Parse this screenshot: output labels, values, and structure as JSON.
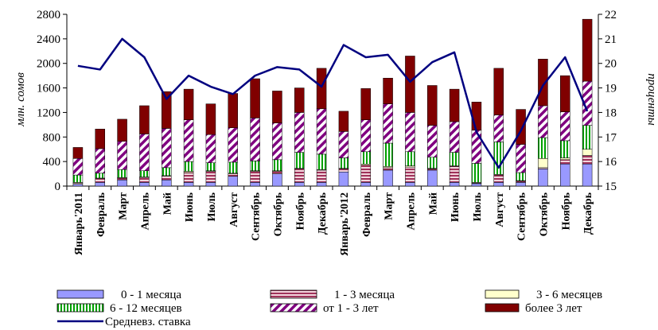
{
  "chart_data": {
    "type": "bar",
    "stacked": true,
    "categories": [
      "Январь'2011",
      "Февраль",
      "Март",
      "Апрель",
      "Май",
      "Июнь",
      "Июль",
      "Август",
      "Сентябрь",
      "Октябрь",
      "Ноябрь",
      "Декабрь",
      "Январь'2012",
      "Февраль",
      "Март",
      "Апрель",
      "Май",
      "Июнь",
      "Июль",
      "Август",
      "Сентябрь",
      "Октябрь",
      "Ноябрь",
      "Декабрь"
    ],
    "ylabel": "млн. сомов",
    "ylabel2": "проценты",
    "ylim": [
      0,
      2800
    ],
    "y2lim": [
      15,
      22
    ],
    "yticks": [
      0,
      400,
      800,
      1200,
      1600,
      2000,
      2400,
      2800
    ],
    "y2ticks": [
      15,
      16,
      17,
      18,
      19,
      20,
      21,
      22
    ],
    "legend_position": "bottom",
    "series": [
      {
        "name": "0 - 1 месяца",
        "color": "#9999ff",
        "pattern": "solid",
        "values": [
          30,
          60,
          100,
          60,
          100,
          60,
          60,
          160,
          60,
          200,
          60,
          60,
          230,
          60,
          260,
          60,
          260,
          60,
          40,
          60,
          60,
          280,
          360,
          360
        ]
      },
      {
        "name": "1 - 3 месяца",
        "color": "#a0325a",
        "pattern": "hstripe",
        "values": [
          20,
          60,
          30,
          80,
          60,
          160,
          180,
          40,
          180,
          40,
          220,
          200,
          50,
          280,
          40,
          250,
          20,
          260,
          10,
          120,
          20,
          20,
          70,
          140
        ]
      },
      {
        "name": "3 - 6 месяцев",
        "color": "#ffffcc",
        "pattern": "solid",
        "values": [
          10,
          10,
          10,
          10,
          10,
          20,
          10,
          10,
          10,
          10,
          10,
          10,
          10,
          20,
          20,
          20,
          10,
          10,
          10,
          10,
          10,
          150,
          30,
          100
        ]
      },
      {
        "name": "6 - 12 месяцев",
        "color": "#00a000",
        "pattern": "vstripe",
        "values": [
          120,
          80,
          130,
          100,
          130,
          160,
          130,
          180,
          160,
          180,
          260,
          250,
          170,
          200,
          380,
          230,
          180,
          220,
          310,
          530,
          130,
          340,
          280,
          390
        ]
      },
      {
        "name": "от 1 - 3 лет",
        "color": "#800080",
        "pattern": "diag",
        "values": [
          270,
          400,
          460,
          600,
          640,
          680,
          460,
          560,
          700,
          600,
          650,
          740,
          430,
          520,
          640,
          640,
          520,
          500,
          540,
          440,
          460,
          520,
          470,
          720
        ]
      },
      {
        "name": "более 3 лет",
        "color": "#800000",
        "pattern": "solid",
        "values": [
          180,
          320,
          360,
          460,
          600,
          500,
          500,
          560,
          640,
          520,
          400,
          660,
          330,
          510,
          420,
          920,
          650,
          530,
          460,
          760,
          570,
          760,
          590,
          1010
        ]
      },
      {
        "name": "Средневз. ставка",
        "color": "#000080",
        "type": "line",
        "axis": "right",
        "values": [
          19.9,
          19.75,
          21.0,
          20.25,
          18.55,
          19.5,
          19.05,
          18.75,
          19.5,
          19.85,
          19.75,
          19.05,
          20.75,
          20.25,
          20.35,
          19.25,
          20.05,
          20.45,
          17.2,
          15.75,
          17.25,
          19.1,
          20.25,
          18.05
        ]
      }
    ]
  }
}
